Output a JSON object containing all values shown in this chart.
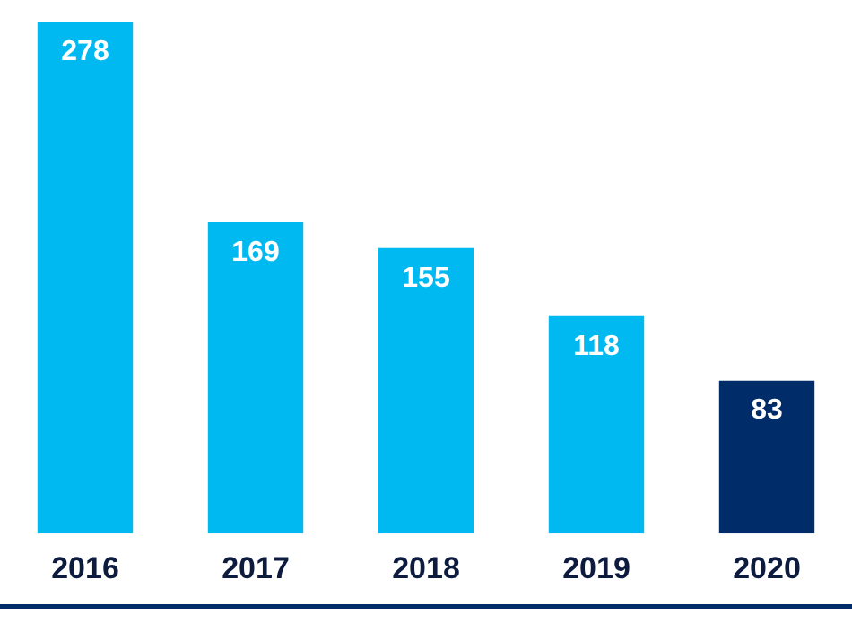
{
  "chart_data": {
    "type": "bar",
    "categories": [
      "2016",
      "2017",
      "2018",
      "2019",
      "2020"
    ],
    "values": [
      278,
      169,
      155,
      118,
      83
    ],
    "colors": [
      "#00b9f1",
      "#00b9f1",
      "#00b9f1",
      "#00b9f1",
      "#002d6a"
    ],
    "data_labels": true,
    "grid": false,
    "legend": false
  }
}
